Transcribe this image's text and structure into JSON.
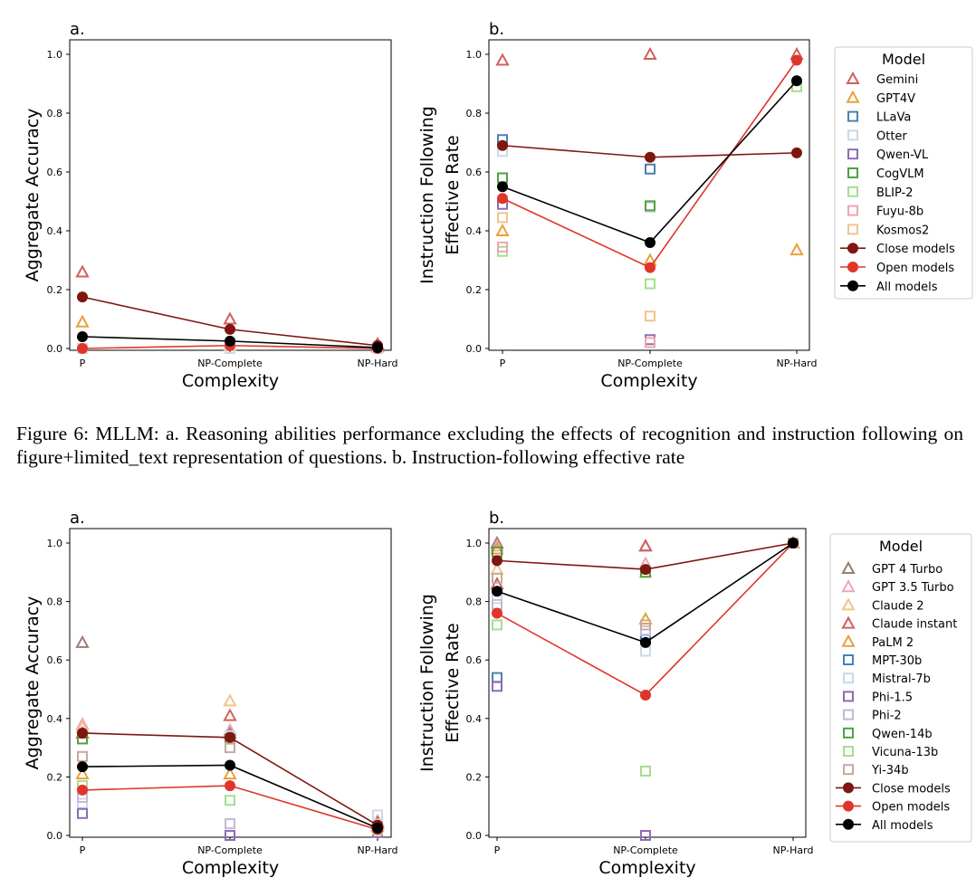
{
  "caption": "Figure 6: MLLM: a. Reasoning abilities performance excluding the effects of recognition and instruction following on figure+limited_text representation of questions. b. Instruction-following effective rate",
  "chart_data": [
    {
      "id": "c1",
      "type": "scatter",
      "panel_label": "a.",
      "ylabel": "Aggregate Accuracy",
      "xlabel": "Complexity",
      "categories": [
        "P",
        "NP-Complete",
        "NP-Hard"
      ],
      "ylim": [
        0,
        1.0
      ],
      "yticks": [
        "0.0",
        "0.2",
        "0.4",
        "0.6",
        "0.8",
        "1.0"
      ],
      "markers": [
        {
          "name": "Gemini",
          "shape": "triangle",
          "color": "#d1605e",
          "values": [
            0.26,
            0.1,
            0.015
          ]
        },
        {
          "name": "GPT4V",
          "shape": "triangle",
          "color": "#e9a03b",
          "values": [
            0.09,
            0.01,
            0.005
          ]
        },
        {
          "name": "Otter",
          "shape": "square",
          "color": "#c9d9ea",
          "values": [
            0.0,
            0.0,
            0.0
          ]
        }
      ],
      "lines": [
        {
          "name": "Close models",
          "color": "#7f1710",
          "values": [
            0.175,
            0.065,
            0.01
          ]
        },
        {
          "name": "Open models",
          "color": "#e0352b",
          "values": [
            0.0,
            0.01,
            0.0
          ]
        },
        {
          "name": "All models",
          "color": "#000000",
          "values": [
            0.04,
            0.025,
            0.003
          ]
        }
      ]
    },
    {
      "id": "c2",
      "type": "scatter",
      "panel_label": "b.",
      "ylabel": [
        "Instruction Following",
        "Effective Rate"
      ],
      "xlabel": "Complexity",
      "categories": [
        "P",
        "NP-Complete",
        "NP-Hard"
      ],
      "ylim": [
        0,
        1.0
      ],
      "yticks": [
        "0.0",
        "0.2",
        "0.4",
        "0.6",
        "0.8",
        "1.0"
      ],
      "markers": [
        {
          "name": "Gemini",
          "shape": "triangle",
          "color": "#d1605e",
          "values": [
            0.98,
            1.0,
            1.0
          ]
        },
        {
          "name": "GPT4V",
          "shape": "triangle",
          "color": "#e9a03b",
          "values": [
            0.4,
            0.3,
            0.335
          ]
        },
        {
          "name": "LLaVa",
          "shape": "square",
          "color": "#4a81b0",
          "values": [
            0.71,
            0.61,
            null
          ]
        },
        {
          "name": "Otter",
          "shape": "square",
          "color": "#c9d9ea",
          "values": [
            0.67,
            0.48,
            null
          ]
        },
        {
          "name": "Qwen-VL",
          "shape": "square",
          "color": "#8e6bb2",
          "values": [
            0.49,
            0.03,
            null
          ]
        },
        {
          "name": "CogVLM",
          "shape": "square",
          "color": "#50a046",
          "values": [
            0.58,
            0.485,
            null
          ]
        },
        {
          "name": "BLIP-2",
          "shape": "square",
          "color": "#a6dd8f",
          "values": [
            0.33,
            0.22,
            0.89
          ]
        },
        {
          "name": "Fuyu-8b",
          "shape": "square",
          "color": "#eea5b3",
          "values": [
            0.345,
            0.02,
            null
          ]
        },
        {
          "name": "Kosmos2",
          "shape": "square",
          "color": "#f3c38c",
          "values": [
            0.445,
            0.11,
            null
          ]
        }
      ],
      "lines": [
        {
          "name": "Close models",
          "color": "#7f1710",
          "values": [
            0.69,
            0.65,
            0.665
          ]
        },
        {
          "name": "Open models",
          "color": "#e0352b",
          "values": [
            0.51,
            0.275,
            0.98
          ]
        },
        {
          "name": "All models",
          "color": "#000000",
          "values": [
            0.55,
            0.36,
            0.91
          ]
        }
      ],
      "legend": {
        "title": "Model",
        "items": [
          "Gemini",
          "GPT4V",
          "LLaVa",
          "Otter",
          "Qwen-VL",
          "CogVLM",
          "BLIP-2",
          "Fuyu-8b",
          "Kosmos2",
          "Close models",
          "Open models",
          "All models"
        ]
      }
    },
    {
      "id": "c3",
      "type": "scatter",
      "panel_label": "a.",
      "ylabel": "Aggregate Accuracy",
      "xlabel": "Complexity",
      "categories": [
        "P",
        "NP-Complete",
        "NP-Hard"
      ],
      "ylim": [
        0,
        1.0
      ],
      "yticks": [
        "0.0",
        "0.2",
        "0.4",
        "0.6",
        "0.8",
        "1.0"
      ],
      "markers": [
        {
          "name": "GPT 4 Turbo",
          "shape": "triangle",
          "color": "#9b7b74",
          "values": [
            0.66,
            0.35,
            0.04
          ]
        },
        {
          "name": "GPT 3.5 Turbo",
          "shape": "triangle",
          "color": "#eea5b3",
          "values": [
            0.38,
            0.36,
            0.03
          ]
        },
        {
          "name": "Claude 2",
          "shape": "triangle",
          "color": "#f3c38c",
          "values": [
            0.37,
            0.46,
            0.05
          ]
        },
        {
          "name": "Claude instant",
          "shape": "triangle",
          "color": "#d1605e",
          "values": [
            0.35,
            0.41,
            0.045
          ]
        },
        {
          "name": "PaLM 2",
          "shape": "triangle",
          "color": "#e9a03b",
          "values": [
            0.21,
            0.21,
            0.03
          ]
        },
        {
          "name": "Mistral-7b",
          "shape": "square",
          "color": "#c9d9ea",
          "values": [
            0.11,
            0.34,
            0.07
          ]
        },
        {
          "name": "Phi-1.5",
          "shape": "square",
          "color": "#8e6bb2",
          "values": [
            0.075,
            0.0,
            0.01
          ]
        },
        {
          "name": "Phi-2",
          "shape": "square",
          "color": "#c6b8d9",
          "values": [
            0.13,
            0.04,
            0.02
          ]
        },
        {
          "name": "Qwen-14b",
          "shape": "square",
          "color": "#50a046",
          "values": [
            0.33,
            0.33,
            0.03
          ]
        },
        {
          "name": "Vicuna-13b",
          "shape": "square",
          "color": "#a6dd8f",
          "values": [
            0.17,
            0.12,
            0.02
          ]
        },
        {
          "name": "Yi-34b",
          "shape": "square",
          "color": "#c9a99c",
          "values": [
            0.27,
            0.3,
            0.03
          ]
        }
      ],
      "lines": [
        {
          "name": "Close models",
          "color": "#7f1710",
          "values": [
            0.35,
            0.335,
            0.035
          ]
        },
        {
          "name": "Open models",
          "color": "#e0352b",
          "values": [
            0.155,
            0.17,
            0.02
          ]
        },
        {
          "name": "All models",
          "color": "#000000",
          "values": [
            0.235,
            0.24,
            0.025
          ]
        }
      ]
    },
    {
      "id": "c4",
      "type": "scatter",
      "panel_label": "b.",
      "ylabel": [
        "Instruction Following",
        "Effective Rate"
      ],
      "xlabel": "Complexity",
      "categories": [
        "P",
        "NP-Complete",
        "NP-Hard"
      ],
      "ylim": [
        0,
        1.0
      ],
      "yticks": [
        "0.0",
        "0.2",
        "0.4",
        "0.6",
        "0.8",
        "1.0"
      ],
      "markers": [
        {
          "name": "GPT 4 Turbo",
          "shape": "triangle",
          "color": "#9b7b74",
          "values": [
            1.0,
            0.99,
            1.0
          ]
        },
        {
          "name": "GPT 3.5 Turbo",
          "shape": "triangle",
          "color": "#eea5b3",
          "values": [
            0.99,
            0.93,
            1.0
          ]
        },
        {
          "name": "Claude 2",
          "shape": "triangle",
          "color": "#f3c38c",
          "values": [
            0.91,
            0.9,
            1.0
          ]
        },
        {
          "name": "Claude instant",
          "shape": "triangle",
          "color": "#d1605e",
          "values": [
            0.86,
            0.99,
            1.0
          ]
        },
        {
          "name": "PaLM 2",
          "shape": "triangle",
          "color": "#e9a03b",
          "values": [
            0.98,
            0.74,
            1.0
          ]
        },
        {
          "name": "MPT-30b",
          "shape": "square",
          "color": "#4a81b0",
          "values": [
            0.54,
            0.67,
            1.0
          ]
        },
        {
          "name": "Mistral-7b",
          "shape": "square",
          "color": "#c9d9ea",
          "values": [
            0.81,
            0.63,
            1.0
          ]
        },
        {
          "name": "Phi-1.5",
          "shape": "square",
          "color": "#8e6bb2",
          "values": [
            0.51,
            0.0,
            1.0
          ]
        },
        {
          "name": "Phi-2",
          "shape": "square",
          "color": "#c6b8d9",
          "values": [
            0.79,
            0.7,
            1.0
          ]
        },
        {
          "name": "Qwen-14b",
          "shape": "square",
          "color": "#50a046",
          "values": [
            0.97,
            0.9,
            1.0
          ]
        },
        {
          "name": "Vicuna-13b",
          "shape": "square",
          "color": "#a6dd8f",
          "values": [
            0.72,
            0.22,
            1.0
          ]
        },
        {
          "name": "Yi-34b",
          "shape": "square",
          "color": "#c9a99c",
          "values": [
            0.88,
            0.72,
            1.0
          ]
        }
      ],
      "lines": [
        {
          "name": "Close models",
          "color": "#7f1710",
          "values": [
            0.94,
            0.91,
            1.0
          ]
        },
        {
          "name": "Open models",
          "color": "#e0352b",
          "values": [
            0.76,
            0.48,
            1.0
          ]
        },
        {
          "name": "All models",
          "color": "#000000",
          "values": [
            0.835,
            0.66,
            1.0
          ]
        }
      ],
      "legend": {
        "title": "Model",
        "items": [
          "GPT 4 Turbo",
          "GPT 3.5 Turbo",
          "Claude 2",
          "Claude instant",
          "PaLM 2",
          "MPT-30b",
          "Mistral-7b",
          "Phi-1.5",
          "Phi-2",
          "Qwen-14b",
          "Vicuna-13b",
          "Yi-34b",
          "Close models",
          "Open models",
          "All models"
        ]
      }
    }
  ]
}
